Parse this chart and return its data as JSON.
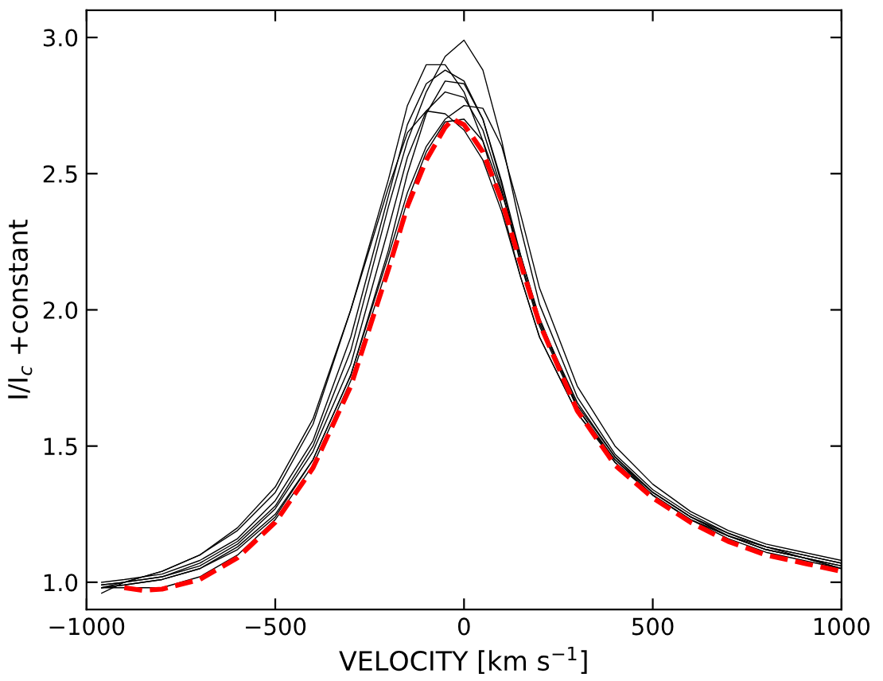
{
  "chart_data": {
    "type": "line",
    "xlabel": "VELOCITY [km s$^{−1}$]",
    "ylabel": "I/I$_{c}$ +constant",
    "x": [
      -960,
      -900,
      -800,
      -700,
      -600,
      -500,
      -400,
      -300,
      -200,
      -150,
      -100,
      -50,
      0,
      50,
      100,
      150,
      200,
      300,
      400,
      500,
      600,
      700,
      800,
      900,
      1000
    ],
    "series": [
      {
        "color": "#000000",
        "values": [
          0.99,
          1.0,
          1.02,
          1.07,
          1.15,
          1.28,
          1.5,
          1.85,
          2.38,
          2.62,
          2.8,
          2.93,
          2.99,
          2.88,
          2.62,
          2.3,
          2.02,
          1.68,
          1.47,
          1.34,
          1.25,
          1.18,
          1.13,
          1.1,
          1.07
        ]
      },
      {
        "color": "#000000",
        "values": [
          0.98,
          1.0,
          1.04,
          1.1,
          1.19,
          1.33,
          1.58,
          2.0,
          2.48,
          2.75,
          2.9,
          2.9,
          2.8,
          2.62,
          2.38,
          2.12,
          1.9,
          1.62,
          1.45,
          1.33,
          1.24,
          1.18,
          1.13,
          1.1,
          1.07
        ]
      },
      {
        "color": "#000000",
        "values": [
          1.0,
          1.01,
          1.03,
          1.08,
          1.16,
          1.3,
          1.52,
          1.9,
          2.42,
          2.68,
          2.83,
          2.88,
          2.84,
          2.7,
          2.46,
          2.18,
          1.95,
          1.65,
          1.46,
          1.33,
          1.24,
          1.17,
          1.13,
          1.09,
          1.06
        ]
      },
      {
        "color": "#000000",
        "values": [
          0.98,
          0.99,
          1.01,
          1.05,
          1.13,
          1.25,
          1.45,
          1.76,
          2.2,
          2.43,
          2.6,
          2.7,
          2.75,
          2.74,
          2.6,
          2.35,
          2.08,
          1.72,
          1.5,
          1.36,
          1.26,
          1.19,
          1.14,
          1.11,
          1.08
        ]
      },
      {
        "color": "#000000",
        "values": [
          0.96,
          1.0,
          1.04,
          1.1,
          1.2,
          1.35,
          1.6,
          2.0,
          2.45,
          2.65,
          2.73,
          2.72,
          2.66,
          2.55,
          2.36,
          2.12,
          1.9,
          1.62,
          1.44,
          1.32,
          1.23,
          1.17,
          1.12,
          1.09,
          1.06
        ]
      },
      {
        "color": "#000000",
        "values": [
          0.99,
          1.0,
          1.02,
          1.06,
          1.14,
          1.27,
          1.48,
          1.8,
          2.3,
          2.56,
          2.73,
          2.8,
          2.78,
          2.66,
          2.44,
          2.17,
          1.94,
          1.64,
          1.45,
          1.32,
          1.23,
          1.17,
          1.12,
          1.09,
          1.05
        ]
      },
      {
        "color": "#000000",
        "values": [
          0.98,
          0.99,
          1.01,
          1.05,
          1.12,
          1.24,
          1.45,
          1.76,
          2.22,
          2.5,
          2.72,
          2.84,
          2.83,
          2.7,
          2.47,
          2.2,
          1.96,
          1.66,
          1.46,
          1.33,
          1.24,
          1.17,
          1.12,
          1.09,
          1.05
        ]
      },
      {
        "color": "#000000",
        "values": [
          0.98,
          0.98,
          0.98,
          1.02,
          1.1,
          1.23,
          1.43,
          1.74,
          2.17,
          2.4,
          2.58,
          2.69,
          2.7,
          2.62,
          2.43,
          2.2,
          1.97,
          1.64,
          1.44,
          1.32,
          1.23,
          1.16,
          1.11,
          1.08,
          1.05
        ]
      },
      {
        "color": "#ff0000",
        "line_style": "dashed",
        "x": [
          -900,
          -850,
          -800,
          -700,
          -600,
          -500,
          -400,
          -300,
          -200,
          -150,
          -100,
          -50,
          -30,
          0,
          50,
          100,
          150,
          200,
          300,
          400,
          500,
          600,
          700,
          800,
          900,
          1000
        ],
        "values": [
          0.98,
          0.97,
          0.975,
          1.01,
          1.09,
          1.22,
          1.42,
          1.72,
          2.15,
          2.38,
          2.55,
          2.67,
          2.7,
          2.68,
          2.58,
          2.4,
          2.17,
          1.95,
          1.63,
          1.43,
          1.31,
          1.22,
          1.15,
          1.1,
          1.07,
          1.04
        ]
      }
    ],
    "xlim": [
      -1000,
      1000
    ],
    "ylim": [
      0.9,
      3.1
    ],
    "xticks": [
      {
        "value": -1000,
        "label": "−1000"
      },
      {
        "value": -500,
        "label": "−500"
      },
      0,
      500,
      1000
    ],
    "yticks": [
      {
        "value": 1.0,
        "label": "1.0"
      },
      {
        "value": 1.5,
        "label": "1.5"
      },
      {
        "value": 2.0,
        "label": "2.0"
      },
      {
        "value": 2.5,
        "label": "2.5"
      },
      {
        "value": 3.0,
        "label": "3.0"
      }
    ]
  }
}
